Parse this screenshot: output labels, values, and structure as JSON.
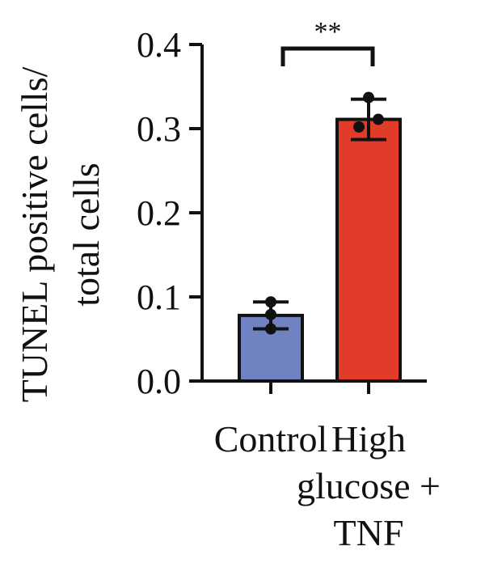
{
  "chart_data": {
    "type": "bar",
    "ylabel_lines": [
      "TUNEL positive cells/",
      "total cells"
    ],
    "categories": [
      {
        "lines": [
          "Control"
        ]
      },
      {
        "lines": [
          "High",
          "glucose +",
          "TNF"
        ]
      }
    ],
    "values": [
      0.078,
      0.311
    ],
    "error": [
      0.016,
      0.024
    ],
    "points": [
      [
        0.094,
        0.079,
        0.062
      ],
      [
        0.337,
        0.311,
        0.302
      ]
    ],
    "colors": [
      "#7082c2",
      "#e13b2a"
    ],
    "ylim": [
      0,
      0.4
    ],
    "yticks": [
      "0.0",
      "0.1",
      "0.2",
      "0.3",
      "0.4"
    ],
    "significance": "**",
    "grid": false
  }
}
